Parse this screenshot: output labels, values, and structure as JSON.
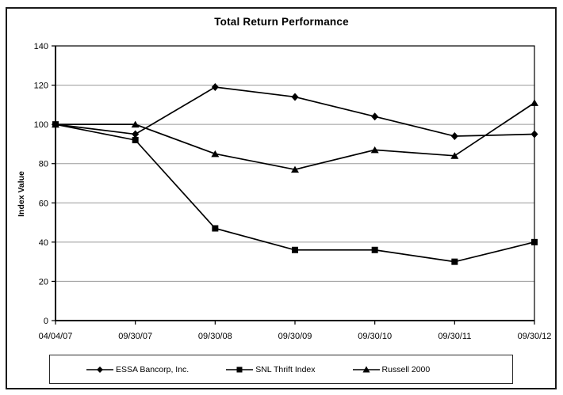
{
  "chart_data": {
    "type": "line",
    "title": "Total Return Performance",
    "xlabel": "",
    "ylabel": "Index Value",
    "categories": [
      "04/04/07",
      "09/30/07",
      "09/30/08",
      "09/30/09",
      "09/30/10",
      "09/30/11",
      "09/30/12"
    ],
    "series": [
      {
        "name": "ESSA Bancorp, Inc.",
        "marker": "diamond",
        "values": [
          100,
          95,
          119,
          114,
          104,
          94,
          95
        ]
      },
      {
        "name": "SNL Thrift Index",
        "marker": "square",
        "values": [
          100,
          92,
          47,
          36,
          36,
          30,
          40
        ]
      },
      {
        "name": "Russell 2000",
        "marker": "triangle",
        "values": [
          100,
          100,
          85,
          77,
          87,
          84,
          111
        ]
      }
    ],
    "ylim": [
      0,
      140
    ],
    "yticks": [
      0,
      20,
      40,
      60,
      80,
      100,
      120,
      140
    ],
    "grid": true,
    "legend_position": "bottom",
    "colors": {
      "line": "#000000",
      "marker": "#000000",
      "gridline": "#9a9a9a",
      "axis": "#000000",
      "background": "#ffffff"
    }
  }
}
